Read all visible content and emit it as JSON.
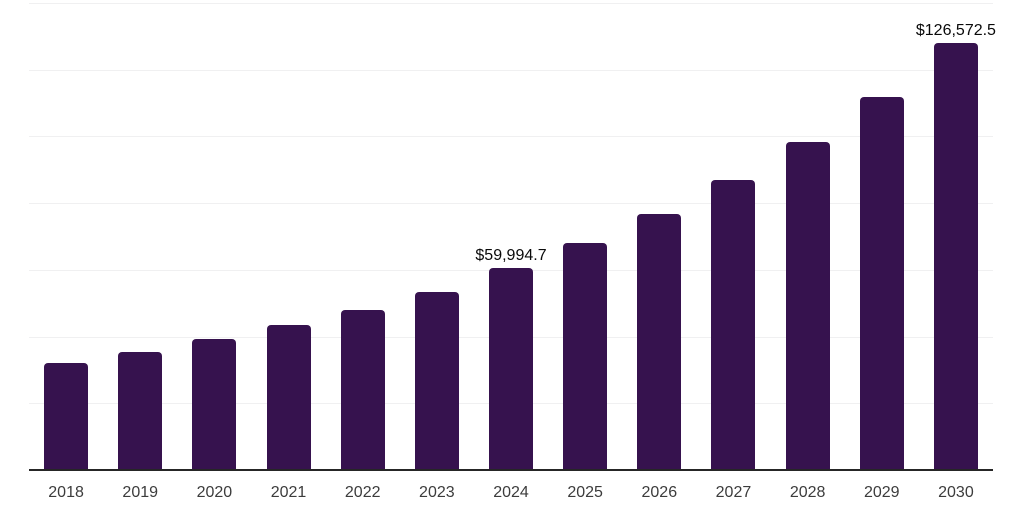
{
  "chart_data": {
    "type": "bar",
    "title": "",
    "xlabel": "",
    "ylabel": "",
    "categories": [
      "2018",
      "2019",
      "2020",
      "2021",
      "2022",
      "2023",
      "2024",
      "2025",
      "2026",
      "2027",
      "2028",
      "2029",
      "2030"
    ],
    "values": [
      31600,
      35100,
      38800,
      43000,
      47600,
      52900,
      59994.7,
      67200,
      75800,
      86000,
      97300,
      110700,
      126572.5
    ],
    "point_labels": {
      "6": "$59,994.7",
      "12": "$126,572.5"
    },
    "ylim": [
      0,
      138500
    ],
    "grid": "horizontal",
    "gridline_divisions": 7,
    "legend": "none",
    "colors": {
      "bar": "#36124E",
      "axis_line": "#262626",
      "gridline": "#f0f0f1",
      "tick_label": "#3c3c3c",
      "value_label": "#0a0a0a",
      "background": "#ffffff"
    }
  }
}
